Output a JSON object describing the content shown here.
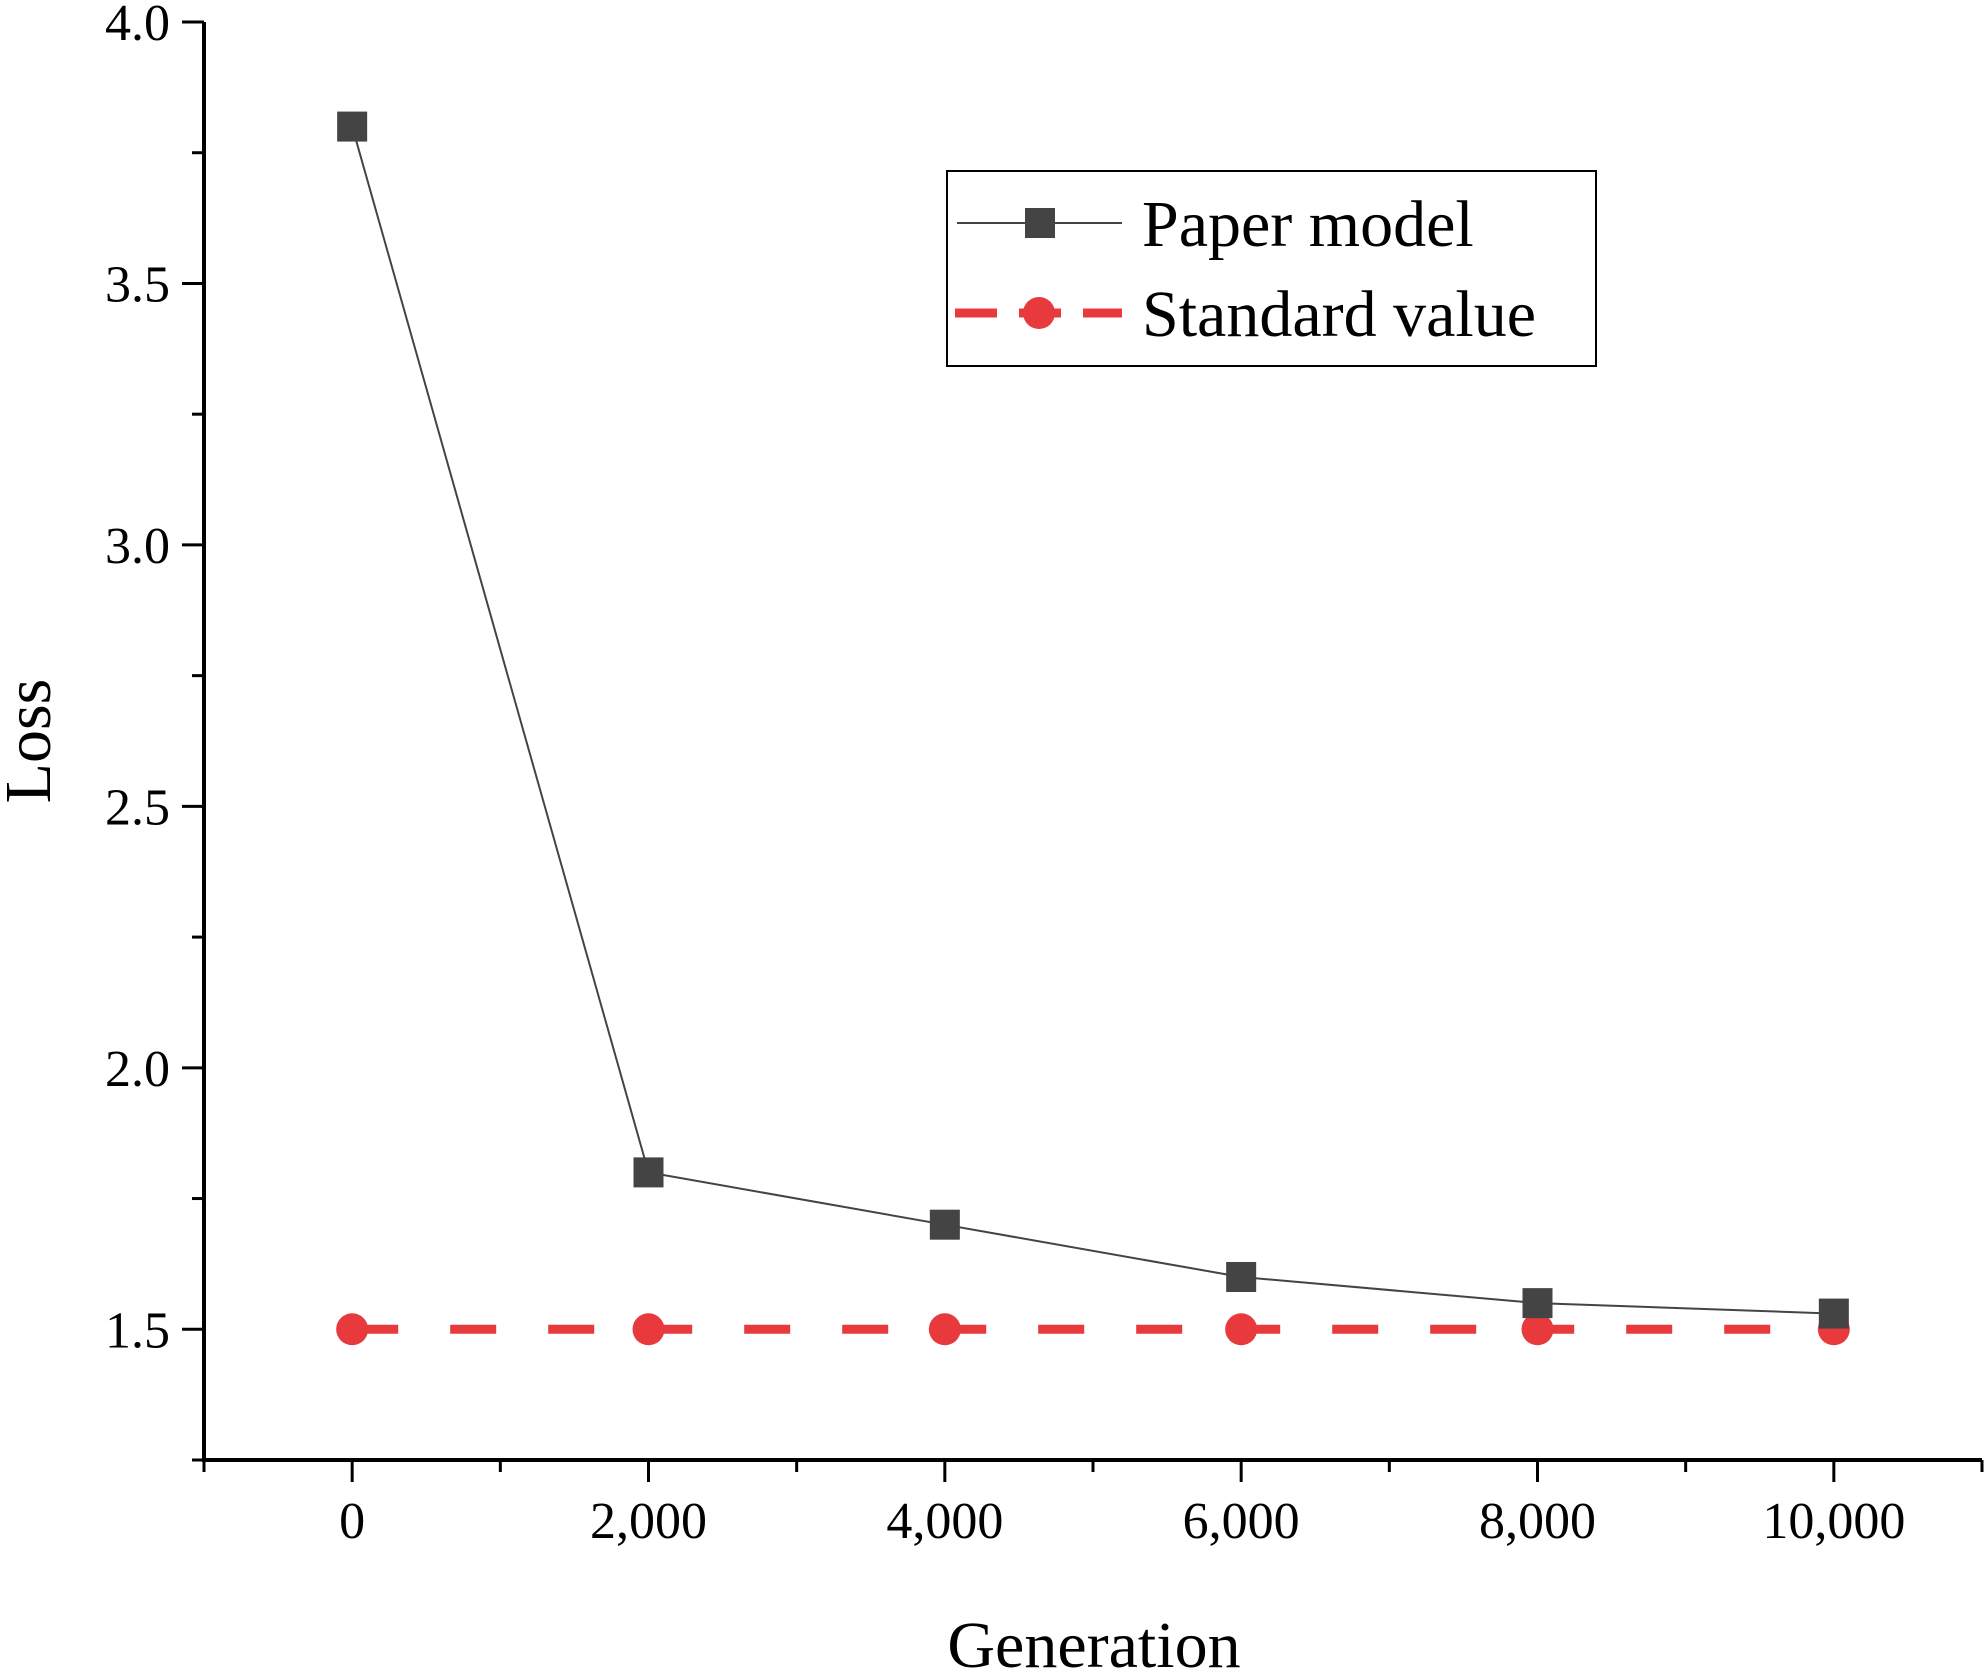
{
  "chart_data": {
    "type": "line",
    "title": "",
    "xlabel": "Generation",
    "ylabel": "Loss",
    "xlim": [
      -1000,
      11000
    ],
    "ylim": [
      1.25,
      4.0
    ],
    "x_ticks": [
      0,
      2000,
      4000,
      6000,
      8000,
      10000
    ],
    "x_tick_labels": [
      "0",
      "2,000",
      "4,000",
      "6,000",
      "8,000",
      "10,000"
    ],
    "y_ticks": [
      1.5,
      2.0,
      2.5,
      3.0,
      3.5,
      4.0
    ],
    "y_tick_labels": [
      "1.5",
      "2.0",
      "2.5",
      "3.0",
      "3.5",
      "4.0"
    ],
    "grid": false,
    "legend_position": "top-right",
    "series": [
      {
        "name": "Paper model",
        "x": [
          0,
          2000,
          4000,
          6000,
          8000,
          10000
        ],
        "y": [
          3.8,
          1.8,
          1.7,
          1.6,
          1.55,
          1.53
        ],
        "color": "#444444",
        "marker": "square",
        "line_style": "solid"
      },
      {
        "name": "Standard value",
        "x": [
          0,
          2000,
          4000,
          6000,
          8000,
          10000
        ],
        "y": [
          1.5,
          1.5,
          1.5,
          1.5,
          1.5,
          1.5
        ],
        "color": "#e8393d",
        "marker": "circle",
        "line_style": "dashed"
      }
    ]
  }
}
